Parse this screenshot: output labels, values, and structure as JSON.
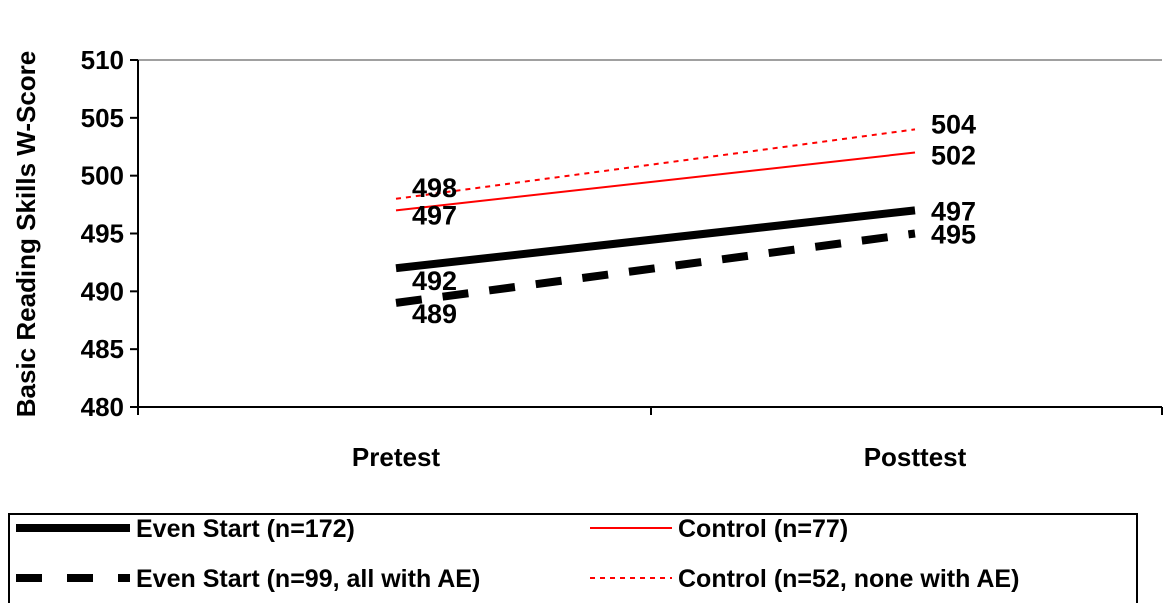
{
  "chart_data": {
    "type": "line",
    "title": "",
    "xlabel": "",
    "ylabel": "Basic Reading Skills W-Score",
    "categories": [
      "Pretest",
      "Posttest"
    ],
    "ylim": [
      480,
      510
    ],
    "yticks": [
      "480",
      "485",
      "490",
      "495",
      "500",
      "505",
      "510"
    ],
    "grid": "top border only",
    "legend_placement": "bottom",
    "series": [
      {
        "name": "Even Start (n=172)",
        "values": [
          492,
          497
        ],
        "labels": [
          "492",
          "497"
        ],
        "color": "#000000",
        "style": "thick-solid"
      },
      {
        "name": "Control (n=77)",
        "values": [
          497,
          502
        ],
        "labels": [
          "497",
          "502"
        ],
        "color": "#ff0000",
        "style": "thin-solid"
      },
      {
        "name": "Even Start (n=99, all with AE)",
        "values": [
          489,
          495
        ],
        "labels": [
          "489",
          "495"
        ],
        "color": "#000000",
        "style": "thick-dashed"
      },
      {
        "name": "Control (n=52, none with AE)",
        "values": [
          498,
          504
        ],
        "labels": [
          "498",
          "504"
        ],
        "color": "#ff0000",
        "style": "thin-dotted"
      }
    ]
  }
}
